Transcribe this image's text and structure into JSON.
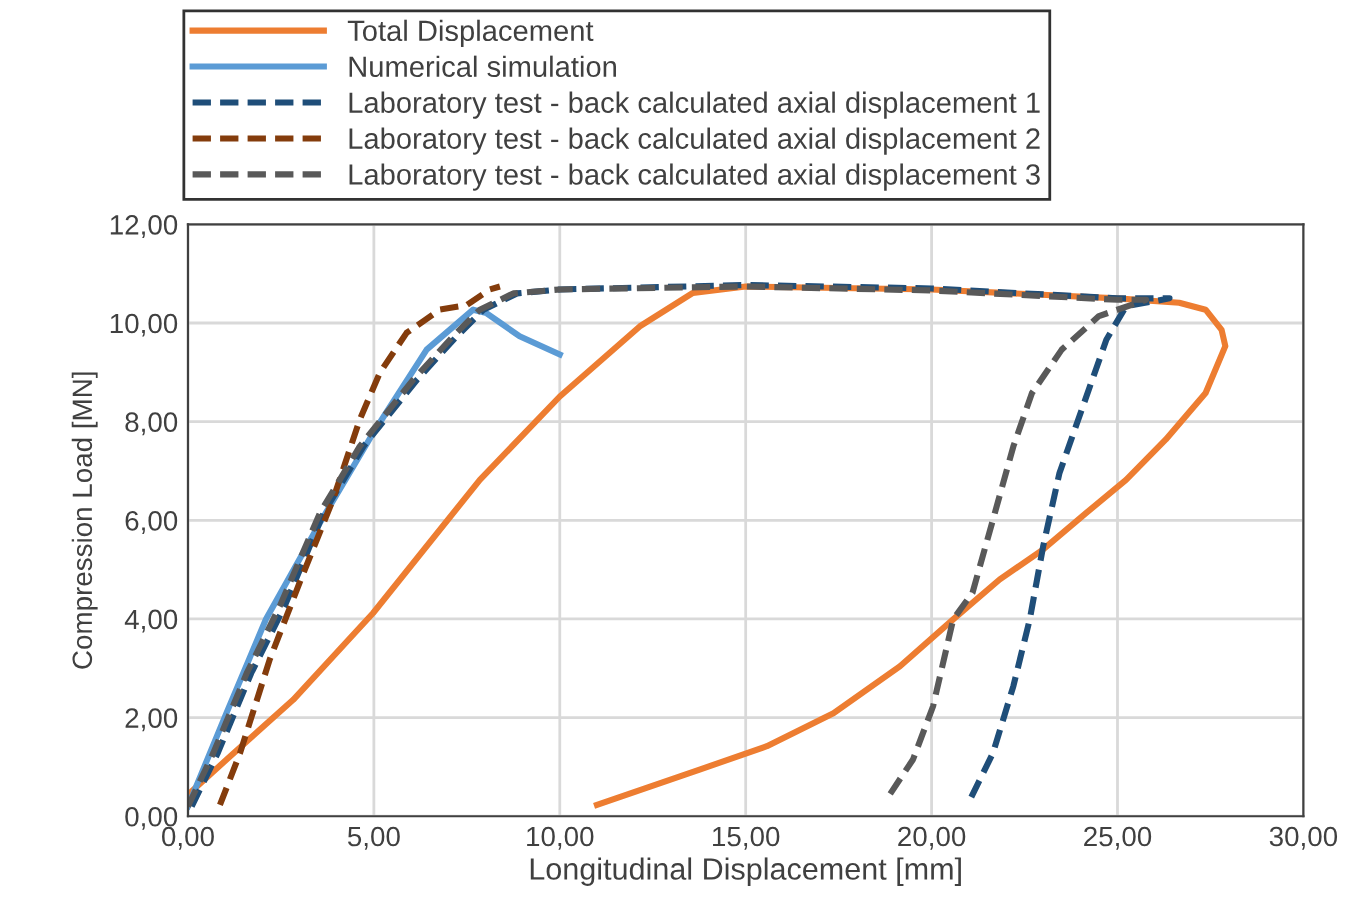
{
  "chart_data": {
    "type": "line",
    "xlabel": "Longitudinal Displacement [mm]",
    "ylabel": "Compression Load [MN]",
    "xlim": [
      0,
      30
    ],
    "ylim": [
      0,
      12
    ],
    "xticks": [
      {
        "value": 0,
        "label": "0,00"
      },
      {
        "value": 5,
        "label": "5,00"
      },
      {
        "value": 10,
        "label": "10,00"
      },
      {
        "value": 15,
        "label": "15,00"
      },
      {
        "value": 20,
        "label": "20,00"
      },
      {
        "value": 25,
        "label": "25,00"
      },
      {
        "value": 30,
        "label": "30,00"
      }
    ],
    "yticks": [
      {
        "value": 0,
        "label": "0,00"
      },
      {
        "value": 2,
        "label": "2,00"
      },
      {
        "value": 4,
        "label": "4,00"
      },
      {
        "value": 6,
        "label": "6,00"
      },
      {
        "value": 8,
        "label": "8,00"
      },
      {
        "value": 10,
        "label": "10,00"
      },
      {
        "value": 12,
        "label": "12,00"
      }
    ],
    "grid": true,
    "legend": "top",
    "marker": "none",
    "series": [
      {
        "name": "Total Displacement",
        "color": "#ed7d31",
        "line_style": "solid",
        "x": [
          0.05,
          1.04,
          2.83,
          4.98,
          7.85,
          10.0,
          12.15,
          13.58,
          15.0,
          20.0,
          24.97,
          26.66,
          27.37,
          27.8,
          27.9,
          27.37,
          26.3,
          25.23,
          24.16,
          23.0,
          21.83,
          20.58,
          19.15,
          17.36,
          15.57,
          13.78,
          11.0
        ],
        "values": [
          0.47,
          1.15,
          2.36,
          4.12,
          6.82,
          8.51,
          9.93,
          10.61,
          10.74,
          10.68,
          10.5,
          10.41,
          10.27,
          9.86,
          9.53,
          8.58,
          7.64,
          6.82,
          6.15,
          5.41,
          4.8,
          3.99,
          3.04,
          2.09,
          1.42,
          0.95,
          0.23
        ]
      },
      {
        "name": "Numerical simulation",
        "color": "#5b9bd5",
        "line_style": "solid",
        "x": [
          0,
          1.04,
          2.1,
          3.55,
          4.98,
          6.42,
          7.67,
          8.03,
          8.92,
          10.0
        ],
        "values": [
          0.2,
          2.1,
          4.0,
          5.95,
          7.77,
          9.46,
          10.27,
          10.2,
          9.73,
          9.36
        ]
      },
      {
        "name": "Laboratory test - back calculated axial displacement 1",
        "color": "#1f4e79",
        "line_style": "dashed",
        "x": [
          0.1,
          0.8,
          1.7,
          2.6,
          3.65,
          4.72,
          6.16,
          7.23,
          7.95,
          8.85,
          10.0,
          15.0,
          20.0,
          25.0,
          26.4,
          25.23,
          24.7,
          24.07,
          23.44,
          23.0,
          22.64,
          22.2,
          21.65,
          20.99
        ],
        "values": [
          0.2,
          1.28,
          2.9,
          4.26,
          6.15,
          7.5,
          8.85,
          9.73,
          10.27,
          10.6,
          10.68,
          10.77,
          10.7,
          10.5,
          10.5,
          10.34,
          9.66,
          8.31,
          6.96,
          5.47,
          3.99,
          2.64,
          1.28,
          0.27
        ]
      },
      {
        "name": "Laboratory test - back calculated axial displacement 2",
        "color": "#843c0c",
        "line_style": "dashed",
        "x": [
          0.86,
          1.4,
          2.2,
          3.0,
          3.9,
          4.62,
          5.16,
          5.88,
          6.77,
          7.49,
          8.12,
          8.39
        ],
        "values": [
          0.23,
          1.28,
          3.18,
          4.73,
          6.42,
          8.04,
          8.99,
          9.8,
          10.27,
          10.36,
          10.68,
          10.74
        ]
      },
      {
        "name": "Laboratory test - back calculated axial displacement 3",
        "color": "#595959",
        "line_style": "dashed",
        "x": [
          0,
          0.68,
          1.58,
          2.47,
          3.55,
          4.62,
          6.06,
          7.13,
          7.85,
          8.75,
          10.0,
          15.0,
          20.0,
          25.0,
          25.77,
          24.5,
          23.5,
          22.7,
          22.2,
          21.65,
          21.1,
          20.58,
          20.04,
          19.5,
          18.76
        ],
        "values": [
          0.2,
          1.28,
          2.9,
          4.26,
          6.15,
          7.5,
          8.85,
          9.73,
          10.27,
          10.6,
          10.68,
          10.74,
          10.66,
          10.47,
          10.47,
          10.14,
          9.46,
          8.58,
          7.5,
          6.01,
          4.53,
          3.99,
          2.23,
          1.15,
          0.31
        ]
      }
    ]
  }
}
